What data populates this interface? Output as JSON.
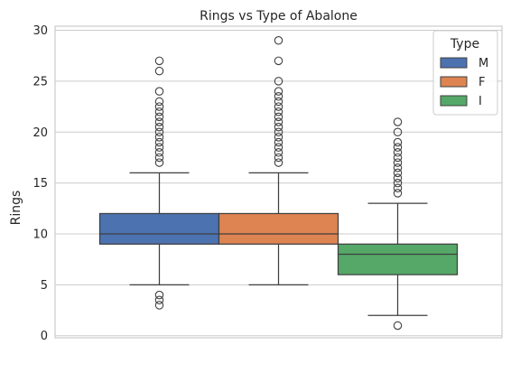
{
  "chart_data": {
    "type": "boxplot",
    "title": "Rings vs Type of Abalone",
    "xlabel": "",
    "ylabel": "Rings",
    "ylim": [
      -0.2,
      30.4
    ],
    "yticks": [
      0,
      5,
      10,
      15,
      20,
      25,
      30
    ],
    "grid": "horizontal",
    "legend": {
      "title": "Type",
      "placement": "top-right"
    },
    "series": [
      {
        "name": "M",
        "color": "#4c72b0",
        "whisker_low": 5,
        "q1": 9,
        "median": 10,
        "q3": 12,
        "whisker_high": 16,
        "outliers": [
          3,
          3.5,
          4,
          17,
          17.5,
          18,
          18.5,
          19,
          19.5,
          20,
          20.5,
          21,
          21.5,
          22,
          22.5,
          23,
          24,
          26,
          27
        ]
      },
      {
        "name": "F",
        "color": "#dd8452",
        "whisker_low": 5,
        "q1": 9,
        "median": 10,
        "q3": 12,
        "whisker_high": 16,
        "outliers": [
          17,
          17.5,
          18,
          18.5,
          19,
          19.5,
          20,
          20.5,
          21,
          21.5,
          22,
          22.5,
          23,
          23.5,
          24,
          25,
          27,
          29
        ]
      },
      {
        "name": "I",
        "color": "#55a868",
        "whisker_low": 2,
        "q1": 6,
        "median": 8,
        "q3": 9,
        "whisker_high": 13,
        "outliers": [
          1,
          14,
          14.5,
          15,
          15.5,
          16,
          16.5,
          17,
          17.5,
          18,
          18.5,
          19,
          20,
          21
        ]
      }
    ]
  }
}
